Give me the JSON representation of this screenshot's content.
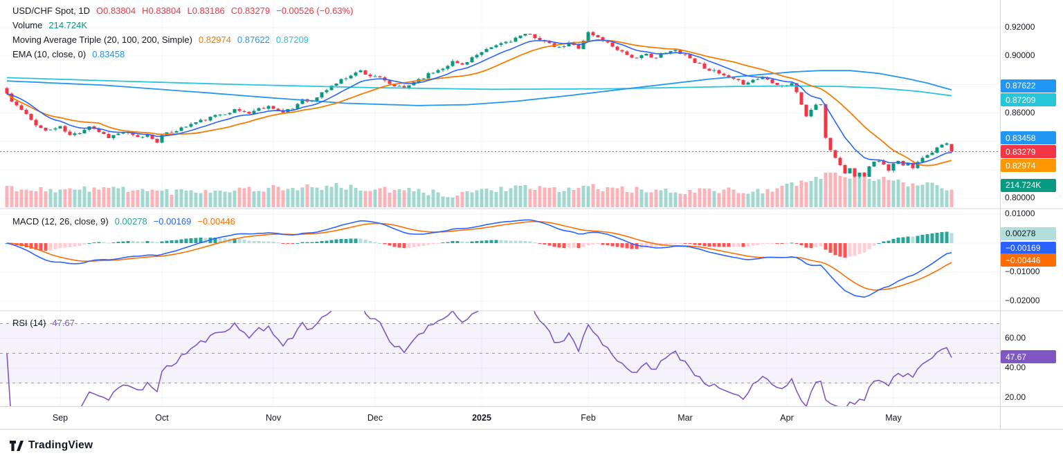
{
  "colors": {
    "up": "#089981",
    "down": "#F23645",
    "ma20": "#F57C00",
    "ma100": "#2196F3",
    "ma200": "#26C6DA",
    "ema10": "#2962FF",
    "macd_line": "#2962FF",
    "signal_line": "#FF6D00",
    "hist_up_grow": "#26A69A",
    "hist_up_fall": "#B2DFDB",
    "hist_dn_fall": "#FF5252",
    "hist_dn_grow": "#FFCDD2",
    "rsi": "#7E57C2",
    "rsi_band": "#7E57C2",
    "grid": "#F0F3FA",
    "separator": "#D1D4DC",
    "level_dash": "#9598A1",
    "last_price": "#F23645",
    "axis_text": "#131722"
  },
  "headers": {
    "price_rows": [
      {
        "name": "symbol-row",
        "segments": [
          {
            "text": "USD/CHF Spot, 1D",
            "color": "#131722"
          },
          {
            "text": "O0.83804",
            "color": "#F23645"
          },
          {
            "text": "H0.83804",
            "color": "#F23645"
          },
          {
            "text": "L0.83186",
            "color": "#F23645"
          },
          {
            "text": "C0.83279",
            "color": "#F23645"
          },
          {
            "text": "−0.00526 (−0.63%)",
            "color": "#F23645"
          }
        ]
      },
      {
        "name": "volume-row",
        "segments": [
          {
            "text": "Volume",
            "color": "#131722"
          },
          {
            "text": "214.724K",
            "color": "#089981"
          }
        ]
      },
      {
        "name": "ma-triple-row",
        "segments": [
          {
            "text": "Moving Average Triple (20, 100, 200, Simple)",
            "color": "#131722"
          },
          {
            "text": "0.82974",
            "color": "#F57C00"
          },
          {
            "text": "0.87622",
            "color": "#2196F3"
          },
          {
            "text": "0.87209",
            "color": "#26C6DA"
          }
        ]
      },
      {
        "name": "ema-row",
        "segments": [
          {
            "text": "EMA (10, close, 0)",
            "color": "#131722"
          },
          {
            "text": "0.83458",
            "color": "#2196F3"
          }
        ]
      }
    ],
    "macd_row": {
      "name": "macd-header-row",
      "segments": [
        {
          "text": "MACD (12, 26, close, 9)",
          "color": "#131722"
        },
        {
          "text": "0.00278",
          "color": "#26A69A"
        },
        {
          "text": "−0.00169",
          "color": "#2962FF"
        },
        {
          "text": "−0.00446",
          "color": "#FF6D00"
        }
      ]
    },
    "rsi_row": {
      "name": "rsi-header-row",
      "segments": [
        {
          "text": "RSI (14)",
          "color": "#131722"
        },
        {
          "text": "47.67",
          "color": "#7E57C2"
        }
      ]
    }
  },
  "price_axis": {
    "pane": "price",
    "labels": [
      {
        "text": "0.92000",
        "v": 0.92
      },
      {
        "text": "0.90000",
        "v": 0.9
      },
      {
        "text": "0.86000",
        "v": 0.86
      },
      {
        "text": "0.80000",
        "v": 0.8
      }
    ],
    "badges": [
      {
        "name": "ma100-badge",
        "text": "0.87622",
        "bg": "#2196F3",
        "fg": "#FFFFFF",
        "v": 0.87622,
        "dy": -6
      },
      {
        "name": "ma200-badge",
        "text": "0.87209",
        "bg": "#26C6DA",
        "fg": "#FFFFFF",
        "v": 0.87209,
        "dy": 6
      },
      {
        "name": "ema-badge",
        "text": "0.83458",
        "bg": "#2196F3",
        "fg": "#FFFFFF",
        "v": 0.83458,
        "dy": -16
      },
      {
        "name": "last-price-badge",
        "text": "0.83279",
        "bg": "#F23645",
        "fg": "#FFFFFF",
        "v": 0.83279,
        "dy": 0
      },
      {
        "name": "ma20-badge",
        "text": "0.82974",
        "bg": "#FF9800",
        "fg": "#FFFFFF",
        "v": 0.82974,
        "dy": 14
      },
      {
        "name": "volume-badge",
        "text": "214.724K",
        "bg": "#089981",
        "fg": "#FFFFFF",
        "y": 268
      }
    ]
  },
  "macd_axis": {
    "pane": "macd",
    "labels": [
      {
        "text": "0.01000",
        "v": 0.01
      },
      {
        "text": "−0.01000",
        "v": -0.01
      },
      {
        "text": "−0.02000",
        "v": -0.02
      }
    ],
    "badges": [
      {
        "name": "macd-hist-badge",
        "text": "0.00278",
        "bg": "#B2DFDB",
        "fg": "#131722",
        "v": 0.00278,
        "dy": -2
      },
      {
        "name": "macd-line-badge",
        "text": "−0.00169",
        "bg": "#2962FF",
        "fg": "#FFFFFF",
        "v": -0.00169,
        "dy": 0
      },
      {
        "name": "macd-signal-badge",
        "text": "−0.00446",
        "bg": "#FF6D00",
        "fg": "#FFFFFF",
        "v": -0.00446,
        "dy": 6
      }
    ]
  },
  "rsi_axis": {
    "pane": "rsi",
    "labels": [
      {
        "text": "60.00",
        "v": 60
      },
      {
        "text": "40.00",
        "v": 40
      },
      {
        "text": "20.00",
        "v": 20
      }
    ],
    "badges": [
      {
        "name": "rsi-badge",
        "text": "47.67",
        "bg": "#7E57C2",
        "fg": "#FFFFFF",
        "v": 47.67,
        "dy": 0
      }
    ]
  },
  "time_axis": {
    "labels": [
      {
        "text": "Sep",
        "i": 11,
        "bold": false
      },
      {
        "text": "Oct",
        "i": 32,
        "bold": false
      },
      {
        "text": "Nov",
        "i": 55,
        "bold": false
      },
      {
        "text": "Dec",
        "i": 76,
        "bold": false
      },
      {
        "text": "2025",
        "i": 98,
        "bold": true
      },
      {
        "text": "Feb",
        "i": 120,
        "bold": false
      },
      {
        "text": "Mar",
        "i": 140,
        "bold": false
      },
      {
        "text": "Apr",
        "i": 161,
        "bold": false
      },
      {
        "text": "May",
        "i": 183,
        "bold": false
      }
    ]
  },
  "footer": {
    "logo_text": "TradingView"
  },
  "chart_data": {
    "type": "candlestick",
    "symbol": "USD/CHF Spot",
    "timeframe": "1D",
    "n_bars": 196,
    "last_bar": {
      "o": 0.83804,
      "h": 0.83804,
      "l": 0.83186,
      "c": 0.83279,
      "change": -0.00526,
      "change_pct": -0.63,
      "volume": "214.724K"
    },
    "indicators": {
      "ma_triple": {
        "periods": [
          20,
          100,
          200
        ],
        "type": "Simple",
        "values": [
          0.82974,
          0.87622,
          0.87209
        ]
      },
      "ema": {
        "period": 10,
        "source": "close",
        "offset": 0,
        "value": 0.83458
      },
      "macd": {
        "fast": 12,
        "slow": 26,
        "source": "close",
        "signal": 9,
        "hist": 0.00278,
        "macd": -0.00169,
        "signal_value": -0.00446
      },
      "rsi": {
        "period": 14,
        "value": 47.67,
        "levels": [
          70,
          50,
          30
        ]
      }
    },
    "price_pane": {
      "ylim": [
        0.79271,
        0.93943
      ],
      "grid": [
        0.92,
        0.9,
        0.88,
        0.86,
        0.84,
        0.82,
        0.8
      ],
      "close_anchors": [
        [
          0,
          0.8735
        ],
        [
          1,
          0.868
        ],
        [
          3,
          0.862
        ],
        [
          5,
          0.855
        ],
        [
          7,
          0.8495
        ],
        [
          8,
          0.8475
        ],
        [
          11,
          0.85
        ],
        [
          13,
          0.844
        ],
        [
          15,
          0.8465
        ],
        [
          17,
          0.851
        ],
        [
          19,
          0.847
        ],
        [
          21,
          0.843
        ],
        [
          24,
          0.8465
        ],
        [
          27,
          0.8425
        ],
        [
          29,
          0.8445
        ],
        [
          31,
          0.84
        ],
        [
          32,
          0.844
        ],
        [
          35,
          0.848
        ],
        [
          38,
          0.852
        ],
        [
          41,
          0.8555
        ],
        [
          44,
          0.859
        ],
        [
          47,
          0.862
        ],
        [
          50,
          0.86
        ],
        [
          52,
          0.863
        ],
        [
          54,
          0.8645
        ],
        [
          55,
          0.864
        ],
        [
          57,
          0.86
        ],
        [
          59,
          0.863
        ],
        [
          61,
          0.87
        ],
        [
          63,
          0.868
        ],
        [
          65,
          0.874
        ],
        [
          67,
          0.879
        ],
        [
          69,
          0.883
        ],
        [
          71,
          0.887
        ],
        [
          73,
          0.8895
        ],
        [
          75,
          0.886
        ],
        [
          76,
          0.886
        ],
        [
          79,
          0.88
        ],
        [
          82,
          0.877
        ],
        [
          84,
          0.882
        ],
        [
          87,
          0.887
        ],
        [
          90,
          0.892
        ],
        [
          92,
          0.896
        ],
        [
          94,
          0.894
        ],
        [
          96,
          0.899
        ],
        [
          98,
          0.902
        ],
        [
          100,
          0.906
        ],
        [
          102,
          0.909
        ],
        [
          104,
          0.911
        ],
        [
          106,
          0.914
        ],
        [
          108,
          0.915
        ],
        [
          110,
          0.912
        ],
        [
          112,
          0.908
        ],
        [
          114,
          0.9055
        ],
        [
          116,
          0.909
        ],
        [
          118,
          0.906
        ],
        [
          120,
          0.9165
        ],
        [
          122,
          0.913
        ],
        [
          124,
          0.909
        ],
        [
          126,
          0.905
        ],
        [
          128,
          0.901
        ],
        [
          130,
          0.898
        ],
        [
          132,
          0.901
        ],
        [
          134,
          0.899
        ],
        [
          136,
          0.902
        ],
        [
          138,
          0.904
        ],
        [
          140,
          0.901
        ],
        [
          142,
          0.896
        ],
        [
          144,
          0.892
        ],
        [
          146,
          0.889
        ],
        [
          148,
          0.886
        ],
        [
          150,
          0.883
        ],
        [
          152,
          0.881
        ],
        [
          154,
          0.883
        ],
        [
          156,
          0.885
        ],
        [
          158,
          0.882
        ],
        [
          160,
          0.879
        ],
        [
          162,
          0.881
        ],
        [
          163,
          0.874
        ],
        [
          164,
          0.866
        ],
        [
          165,
          0.858
        ],
        [
          166,
          0.862
        ],
        [
          167,
          0.866
        ],
        [
          168,
          0.865
        ],
        [
          169,
          0.843
        ],
        [
          170,
          0.834
        ],
        [
          171,
          0.829
        ],
        [
          172,
          0.823
        ],
        [
          173,
          0.818
        ],
        [
          174,
          0.821
        ],
        [
          175,
          0.815
        ],
        [
          176,
          0.819
        ],
        [
          177,
          0.816
        ],
        [
          178,
          0.823
        ],
        [
          179,
          0.825
        ],
        [
          180,
          0.827
        ],
        [
          181,
          0.823
        ],
        [
          182,
          0.82
        ],
        [
          183,
          0.824
        ],
        [
          184,
          0.8255
        ],
        [
          185,
          0.8225
        ],
        [
          186,
          0.824
        ],
        [
          187,
          0.822
        ],
        [
          188,
          0.8265
        ],
        [
          189,
          0.828
        ],
        [
          190,
          0.831
        ],
        [
          191,
          0.833
        ],
        [
          192,
          0.836
        ],
        [
          193,
          0.8385
        ],
        [
          194,
          0.8378
        ],
        [
          195,
          0.83279
        ]
      ],
      "ma100_anchors": [
        [
          0,
          0.8825
        ],
        [
          20,
          0.8795
        ],
        [
          40,
          0.8745
        ],
        [
          55,
          0.8705
        ],
        [
          70,
          0.8668
        ],
        [
          85,
          0.8652
        ],
        [
          95,
          0.8658
        ],
        [
          105,
          0.8682
        ],
        [
          115,
          0.8718
        ],
        [
          125,
          0.8758
        ],
        [
          135,
          0.8798
        ],
        [
          145,
          0.8838
        ],
        [
          155,
          0.8868
        ],
        [
          162,
          0.8888
        ],
        [
          168,
          0.8898
        ],
        [
          174,
          0.8898
        ],
        [
          180,
          0.8878
        ],
        [
          186,
          0.884
        ],
        [
          190,
          0.881
        ],
        [
          195,
          0.87622
        ]
      ],
      "ma200_anchors": [
        [
          0,
          0.8848
        ],
        [
          25,
          0.8822
        ],
        [
          50,
          0.8798
        ],
        [
          75,
          0.8778
        ],
        [
          100,
          0.8766
        ],
        [
          125,
          0.877
        ],
        [
          150,
          0.8786
        ],
        [
          162,
          0.879
        ],
        [
          172,
          0.8786
        ],
        [
          180,
          0.8775
        ],
        [
          188,
          0.8752
        ],
        [
          195,
          0.87209
        ]
      ],
      "volume_anchors": [
        [
          0,
          0.55
        ],
        [
          12,
          0.5
        ],
        [
          24,
          0.55
        ],
        [
          32,
          0.45
        ],
        [
          44,
          0.5
        ],
        [
          55,
          0.55
        ],
        [
          68,
          0.6
        ],
        [
          76,
          0.5
        ],
        [
          86,
          0.45
        ],
        [
          92,
          0.35
        ],
        [
          98,
          0.5
        ],
        [
          106,
          0.55
        ],
        [
          114,
          0.5
        ],
        [
          120,
          0.6
        ],
        [
          128,
          0.5
        ],
        [
          136,
          0.45
        ],
        [
          144,
          0.5
        ],
        [
          152,
          0.45
        ],
        [
          160,
          0.55
        ],
        [
          164,
          0.7
        ],
        [
          167,
          0.8
        ],
        [
          169,
          1.0
        ],
        [
          172,
          0.95
        ],
        [
          175,
          0.9
        ],
        [
          178,
          0.85
        ],
        [
          181,
          0.8
        ],
        [
          184,
          0.72
        ],
        [
          187,
          0.68
        ],
        [
          190,
          0.72
        ],
        [
          193,
          0.62
        ],
        [
          195,
          0.55
        ]
      ]
    },
    "macd_pane": {
      "ylim": [
        -0.023333,
        0.011905
      ],
      "grid": [
        0.01,
        0,
        -0.01,
        -0.02
      ]
    },
    "rsi_pane": {
      "ylim": [
        14.42,
        78.6
      ],
      "grid": [
        60,
        40,
        20
      ],
      "dashed_levels": [
        70,
        50,
        30
      ]
    },
    "render": {
      "seed": 11,
      "x0": 10,
      "dx": 7,
      "close_noise": 0.0011,
      "wick": 0.0013,
      "vol_noise": 0.2,
      "first_open_offset": 0.004
    }
  }
}
